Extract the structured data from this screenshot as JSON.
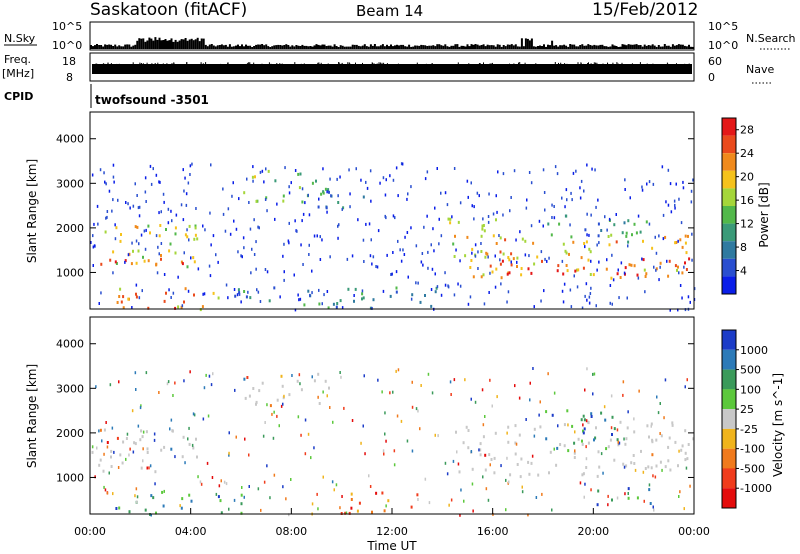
{
  "header": {
    "station": "Saskatoon (fitACF)",
    "beam": "Beam 14",
    "date": "15/Feb/2012"
  },
  "top_panels": {
    "nsky_label": "N.Sky",
    "nsky_top_tick": "10^5",
    "nsky_bottom_tick": "10^0",
    "nsearch_label": "N.Search",
    "nsearch_top_tick": "10^5",
    "nsearch_bottom_tick": "10^0",
    "freq_label": "Freq.",
    "freq_unit": "[MHz]",
    "freq_top_tick": "18",
    "freq_bottom_tick": "8",
    "nave_label": "Nave",
    "nave_top_tick": "60",
    "nave_bottom_tick": "0",
    "cpid_label": "CPID",
    "cpid_value": "twofsound  -3501"
  },
  "chart_data": [
    {
      "type": "heatmap",
      "name": "power",
      "xlabel": "Time UT",
      "ylabel": "Slant Range [km]",
      "xlim": [
        0,
        24
      ],
      "ylim": [
        180,
        4600
      ],
      "x_ticks": [
        "00:00",
        "04:00",
        "08:00",
        "12:00",
        "16:00",
        "20:00",
        "00:00"
      ],
      "y_ticks": [
        "1000",
        "2000",
        "3000",
        "4000"
      ],
      "colorbar": {
        "label": "Power [dB]",
        "ticks": [
          "4",
          "8",
          "12",
          "16",
          "20",
          "24",
          "28"
        ],
        "range": [
          0,
          30
        ],
        "colors": [
          "#0a1ee8",
          "#2a4fd0",
          "#2f7aa0",
          "#3a9a78",
          "#52b84a",
          "#a5d63a",
          "#f5c21c",
          "#f08a1c",
          "#ea4a1c",
          "#e41818"
        ]
      },
      "scatter_bands": [
        {
          "t0": 0.0,
          "t1": 4.3,
          "r0": 1150,
          "r1": 2150,
          "level": 18
        },
        {
          "t0": 0.3,
          "t1": 4.5,
          "r0": 1150,
          "r1": 1450,
          "level": 26
        },
        {
          "t0": 1.0,
          "t1": 5.6,
          "r0": 200,
          "r1": 700,
          "level": 22
        },
        {
          "t0": 2.8,
          "t1": 4.6,
          "r0": 200,
          "r1": 450,
          "level": 28
        },
        {
          "t0": 6.0,
          "t1": 9.5,
          "r0": 2600,
          "r1": 3350,
          "level": 14
        },
        {
          "t0": 9.0,
          "t1": 11.0,
          "r0": 2450,
          "r1": 2900,
          "level": 8
        },
        {
          "t0": 5.5,
          "t1": 14.0,
          "r0": 200,
          "r1": 700,
          "level": 8
        },
        {
          "t0": 14.2,
          "t1": 16.5,
          "r0": 1300,
          "r1": 2300,
          "level": 18
        },
        {
          "t0": 15.0,
          "t1": 24.0,
          "r0": 900,
          "r1": 1900,
          "level": 20
        },
        {
          "t0": 16.0,
          "t1": 23.8,
          "r0": 950,
          "r1": 1350,
          "level": 27
        },
        {
          "t0": 18.0,
          "t1": 22.5,
          "r0": 1700,
          "r1": 2300,
          "level": 10
        }
      ]
    },
    {
      "type": "heatmap",
      "name": "velocity",
      "xlabel": "Time UT",
      "ylabel": "Slant Range [km]",
      "xlim": [
        0,
        24
      ],
      "ylim": [
        180,
        4600
      ],
      "x_ticks": [
        "00:00",
        "04:00",
        "08:00",
        "12:00",
        "16:00",
        "20:00",
        "00:00"
      ],
      "y_ticks": [
        "1000",
        "2000",
        "3000",
        "4000"
      ],
      "colorbar": {
        "label": "Velocity [m s^-1]",
        "ticks": [
          "1000",
          "500",
          "100",
          "25",
          "-25",
          "-100",
          "-500",
          "-1000"
        ],
        "colors": [
          "#1c3cc8",
          "#2c7ab8",
          "#3a9a5a",
          "#5cc83c",
          "#c8c8c8",
          "#f0b41c",
          "#f07a1c",
          "#f03c1c",
          "#e40c0c"
        ]
      },
      "scatter_bands": [
        {
          "t0": 0.0,
          "t1": 4.3,
          "r0": 1150,
          "r1": 2150,
          "class": "ground"
        },
        {
          "t0": 6.0,
          "t1": 9.5,
          "r0": 2600,
          "r1": 3350,
          "class": "ground"
        },
        {
          "t0": 14.2,
          "t1": 24.0,
          "r0": 1050,
          "r1": 2300,
          "class": "ground"
        },
        {
          "t0": 1.0,
          "t1": 6.0,
          "r0": 200,
          "r1": 700,
          "class": "positive"
        },
        {
          "t0": 9.5,
          "t1": 13.0,
          "r0": 200,
          "r1": 700,
          "class": "negative"
        },
        {
          "t0": 20.0,
          "t1": 22.5,
          "r0": 400,
          "r1": 800,
          "class": "positive"
        },
        {
          "t0": 18.0,
          "t1": 21.0,
          "r0": 1600,
          "r1": 2600,
          "class": "positive"
        }
      ]
    }
  ]
}
